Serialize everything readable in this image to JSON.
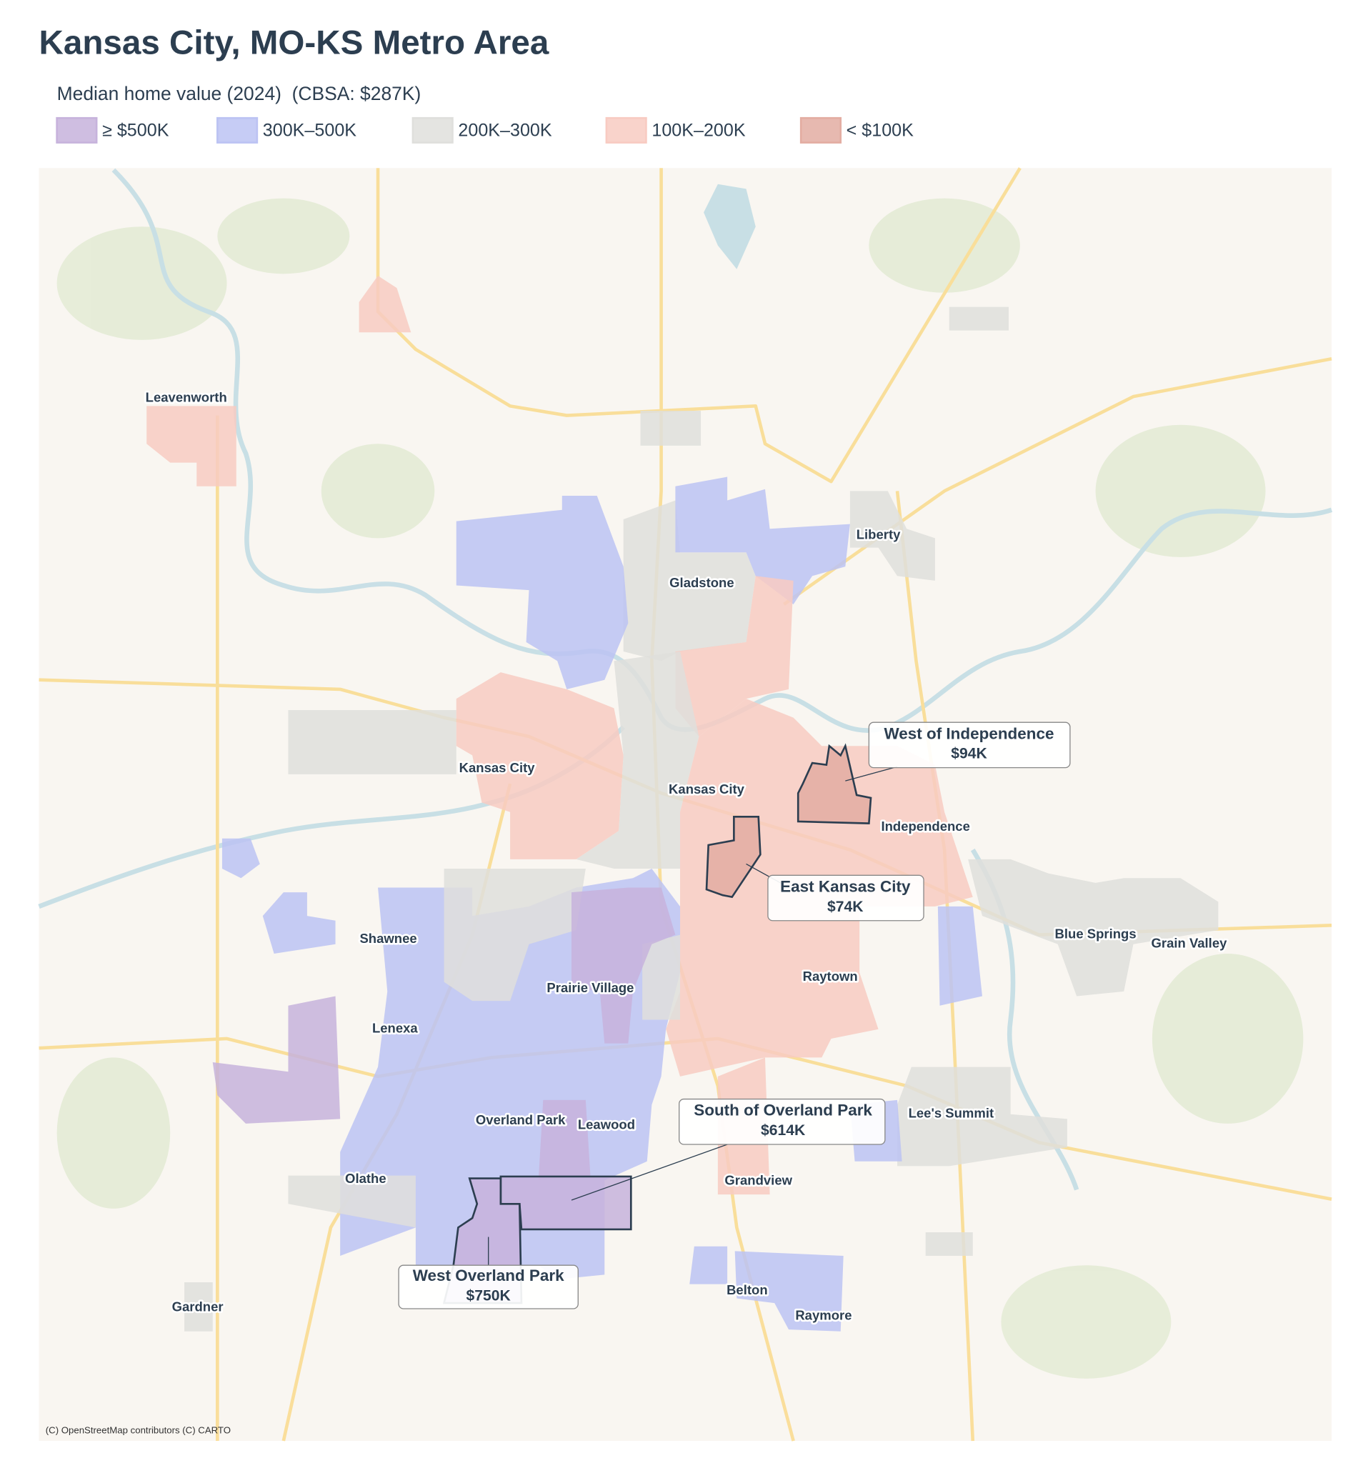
{
  "header": {
    "title": "Kansas City, MO-KS Metro Area",
    "subtitle": "Median home value (2024)  (CBSA: $287K)"
  },
  "legend": [
    {
      "label": "≥ $500K",
      "color": "#c7b3dc"
    },
    {
      "label": "300K–500K",
      "color": "#bcc3f3"
    },
    {
      "label": "200K–300K",
      "color": "#dfdfdc"
    },
    {
      "label": "100K–200K",
      "color": "#f8cbc2"
    },
    {
      "label": "< $100K",
      "color": "#e3ada2"
    }
  ],
  "places": [
    "Leavenworth",
    "Liberty",
    "Gladstone",
    "Kansas City",
    "Kansas City",
    "Independence",
    "Shawnee",
    "Blue Springs",
    "Grain Valley",
    "Prairie Village",
    "Raytown",
    "Lenexa",
    "Lee's Summit",
    "Overland Park",
    "Leawood",
    "Grandview",
    "Olathe",
    "Belton",
    "Raymore",
    "Gardner"
  ],
  "callouts": [
    {
      "name": "West of Independence",
      "value": "$94K"
    },
    {
      "name": "East Kansas City",
      "value": "$74K"
    },
    {
      "name": "South of Overland Park",
      "value": "$614K"
    },
    {
      "name": "West Overland Park",
      "value": "$750K"
    }
  ],
  "attribution": "(C) OpenStreetMap contributors (C) CARTO"
}
